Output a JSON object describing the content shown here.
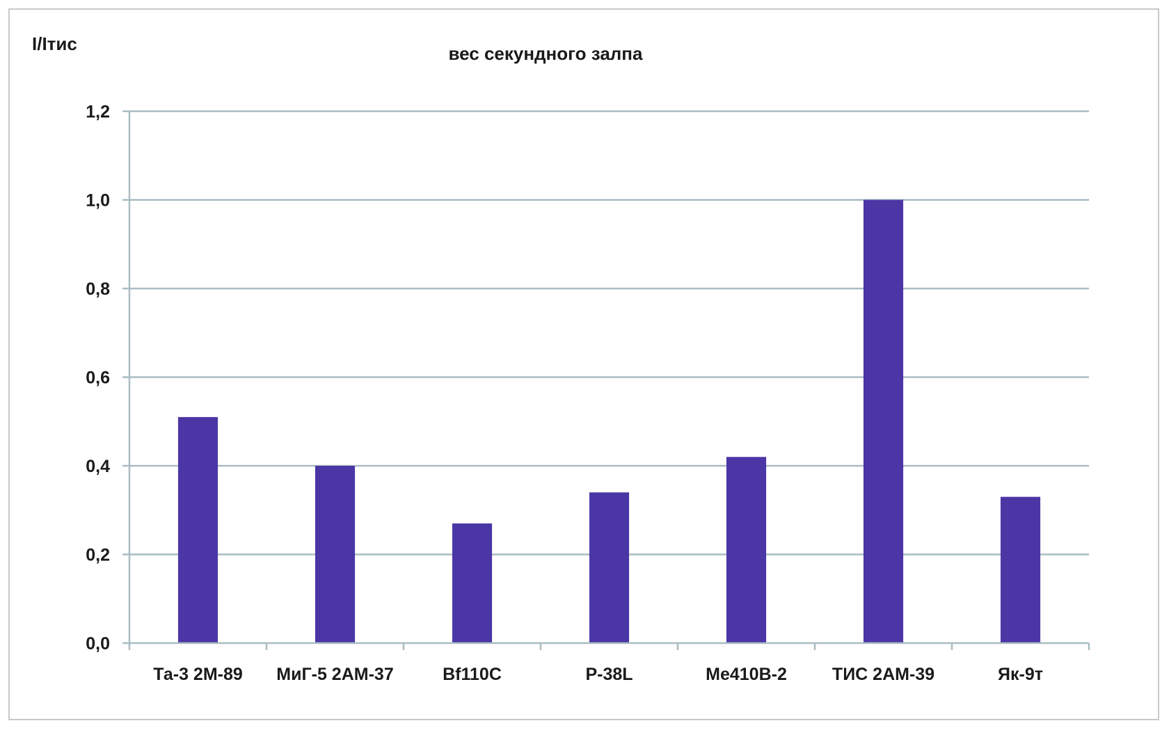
{
  "chart_data": {
    "type": "bar",
    "title": "вес секундного залпа",
    "ylabel": "I/Iтис",
    "xlabel": "",
    "categories": [
      "Та-3 2М-89",
      "МиГ-5 2АМ-37",
      "Bf110C",
      "P-38L",
      "Me410B-2",
      "ТИС 2АМ-39",
      "Як-9т"
    ],
    "values": [
      0.51,
      0.4,
      0.27,
      0.34,
      0.42,
      1.0,
      0.33
    ],
    "ylim": [
      0,
      1.2
    ],
    "yticks": [
      0,
      0.2,
      0.4,
      0.6,
      0.8,
      1.0,
      1.2
    ],
    "ytick_labels": [
      "0,0",
      "0,2",
      "0,4",
      "0,6",
      "0,8",
      "1,0",
      "1,2"
    ],
    "grid": true,
    "bar_color": "#4b36a6",
    "grid_color": "#a9bcc2",
    "axis_color": "#a9bcc2"
  }
}
